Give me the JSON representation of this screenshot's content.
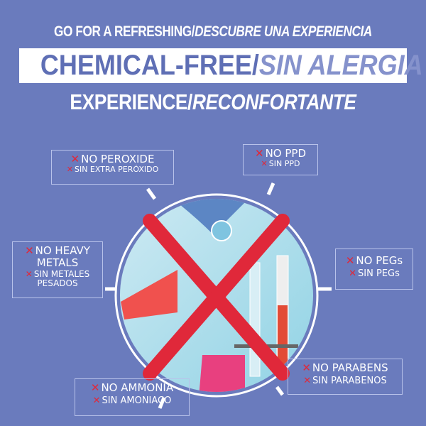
{
  "headline": {
    "line1_en": "GO FOR A REFRESHING/",
    "line1_es": "DESCUBRE UNA EXPERIENCIA",
    "line2_en": "CHEMICAL-FREE/",
    "line2_es": "SIN ALERGIA",
    "line3_en": "EXPERIENCE/",
    "line3_es": "RECONFORTANTE"
  },
  "x_mark": "✕",
  "callouts": [
    {
      "en": "NO PEROXIDE",
      "es": "SIN EXTRA PERÓXIDO"
    },
    {
      "en": "NO PPD",
      "es": "SIN PPD"
    },
    {
      "en": "NO HEAVY METALS",
      "es": "SIN METALES PESADOS"
    },
    {
      "en": "NO PEGs",
      "es": "SIN PEGs"
    },
    {
      "en": "NO PARABENS",
      "es": "SIN PARABENOS"
    },
    {
      "en": "NO AMMONIA",
      "es": "SIN AMONIACO"
    }
  ],
  "colors": {
    "background": "#6a7bbd",
    "cross": "#e0283a",
    "accent_text": "#5f6fb5"
  },
  "icons": [
    "lab-glassware-image",
    "red-cross-icon",
    "x-icon"
  ]
}
